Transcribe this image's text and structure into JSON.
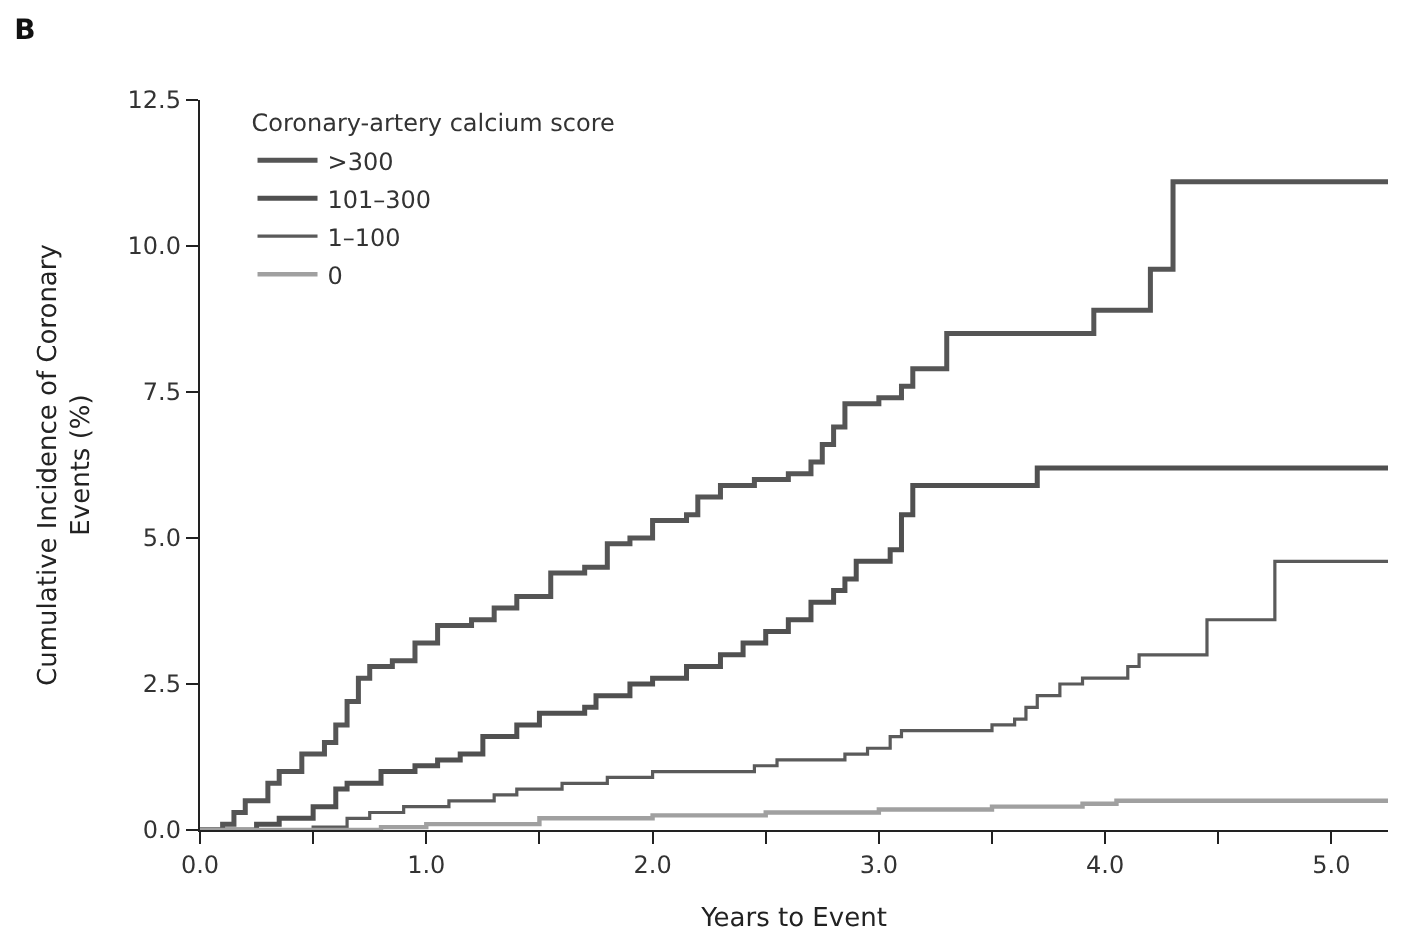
{
  "chart_data": {
    "type": "step",
    "title": "B",
    "xlabel": "Years to Event",
    "ylabel": "Cumulative Incidence of Coronary\nEvents (%)",
    "legend_title": "Coronary-artery calcium score",
    "legend": "top left",
    "marker": "none",
    "line_style": "solid",
    "xlim": [
      0,
      5.25
    ],
    "ylim": [
      0,
      12.5
    ],
    "xticks": [
      {
        "value": 0,
        "label": "0.0"
      },
      {
        "value": 0.5,
        "label": null
      },
      {
        "value": 1,
        "label": "1.0"
      },
      {
        "value": 1.5,
        "label": null
      },
      {
        "value": 2,
        "label": "2.0"
      },
      {
        "value": 2.5,
        "label": null
      },
      {
        "value": 3,
        "label": "3.0"
      },
      {
        "value": 3.5,
        "label": null
      },
      {
        "value": 4,
        "label": "4.0"
      },
      {
        "value": 4.5,
        "label": null
      },
      {
        "value": 5,
        "label": "5.0"
      }
    ],
    "yticks": [
      {
        "value": 0,
        "label": "0.0"
      },
      2.5,
      {
        "value": 5,
        "label": "5.0"
      },
      7.5,
      {
        "value": 10,
        "label": "10.0"
      },
      12.5
    ],
    "series": [
      {
        "name": ">300",
        "color": "#555555",
        "x": [
          0,
          0.1,
          0.15,
          0.2,
          0.3,
          0.35,
          0.45,
          0.55,
          0.6,
          0.65,
          0.7,
          0.75,
          0.85,
          0.95,
          1.05,
          1.2,
          1.3,
          1.4,
          1.55,
          1.7,
          1.8,
          1.9,
          2.0,
          2.15,
          2.2,
          2.3,
          2.45,
          2.6,
          2.7,
          2.75,
          2.8,
          2.85,
          3.0,
          3.1,
          3.15,
          3.3,
          3.95,
          4.2,
          4.3,
          5.25
        ],
        "values": [
          0,
          0.1,
          0.3,
          0.5,
          0.8,
          1.0,
          1.3,
          1.5,
          1.8,
          2.2,
          2.6,
          2.8,
          2.9,
          3.2,
          3.5,
          3.6,
          3.8,
          4.0,
          4.4,
          4.5,
          4.9,
          5.0,
          5.3,
          5.4,
          5.7,
          5.9,
          6.0,
          6.1,
          6.3,
          6.6,
          6.9,
          7.3,
          7.4,
          7.6,
          7.9,
          8.5,
          8.9,
          9.6,
          11.1,
          11.1
        ]
      },
      {
        "name": "101–300",
        "color": "#505050",
        "x": [
          0,
          0.25,
          0.35,
          0.5,
          0.6,
          0.65,
          0.8,
          0.95,
          1.05,
          1.15,
          1.25,
          1.4,
          1.5,
          1.7,
          1.75,
          1.9,
          2.0,
          2.15,
          2.3,
          2.4,
          2.5,
          2.6,
          2.7,
          2.8,
          2.85,
          2.9,
          3.05,
          3.1,
          3.15,
          3.7,
          5.25
        ],
        "values": [
          0,
          0.1,
          0.2,
          0.4,
          0.7,
          0.8,
          1.0,
          1.1,
          1.2,
          1.3,
          1.6,
          1.8,
          2.0,
          2.1,
          2.3,
          2.5,
          2.6,
          2.8,
          3.0,
          3.2,
          3.4,
          3.6,
          3.9,
          4.1,
          4.3,
          4.6,
          4.8,
          5.4,
          5.9,
          6.2,
          6.2
        ]
      },
      {
        "name": "1–100",
        "color": "#5a5a5a",
        "x": [
          0,
          0.5,
          0.65,
          0.75,
          0.9,
          1.1,
          1.3,
          1.4,
          1.6,
          1.8,
          2.0,
          2.45,
          2.55,
          2.85,
          2.95,
          3.05,
          3.1,
          3.5,
          3.6,
          3.65,
          3.7,
          3.8,
          3.9,
          4.1,
          4.15,
          4.45,
          4.75,
          5.25
        ],
        "values": [
          0,
          0.05,
          0.2,
          0.3,
          0.4,
          0.5,
          0.6,
          0.7,
          0.8,
          0.9,
          1.0,
          1.1,
          1.2,
          1.3,
          1.4,
          1.6,
          1.7,
          1.8,
          1.9,
          2.1,
          2.3,
          2.5,
          2.6,
          2.8,
          3.0,
          3.6,
          4.6,
          4.6
        ]
      },
      {
        "name": "0",
        "color": "#a0a0a0",
        "x": [
          0,
          0.8,
          1.0,
          1.5,
          2.0,
          2.5,
          3.0,
          3.5,
          3.9,
          4.05,
          5.25
        ],
        "values": [
          0,
          0.05,
          0.1,
          0.2,
          0.25,
          0.3,
          0.35,
          0.4,
          0.45,
          0.5,
          0.5
        ]
      }
    ]
  }
}
